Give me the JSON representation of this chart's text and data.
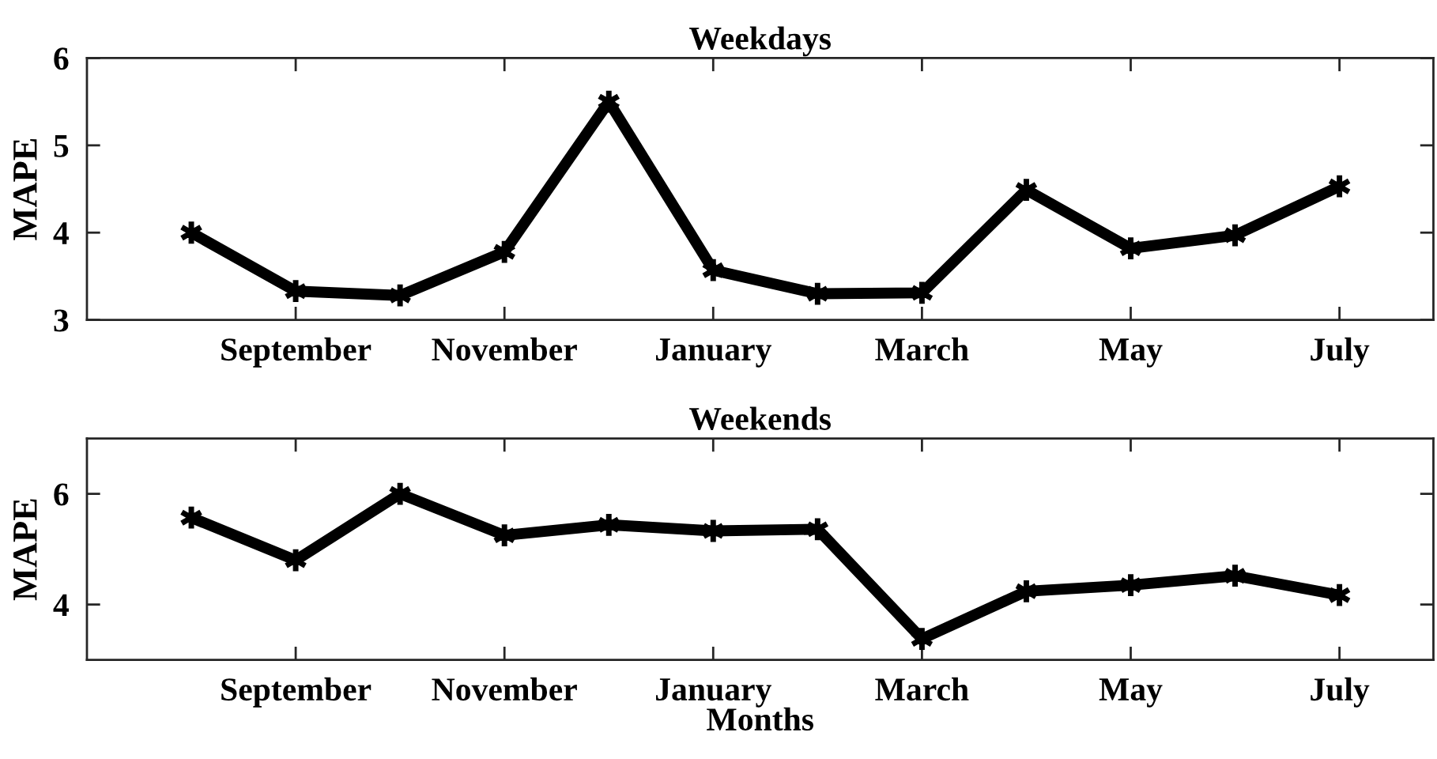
{
  "chart_data": [
    {
      "type": "line",
      "title": "Weekdays",
      "ylabel": "MAPE",
      "categories": [
        null,
        "September",
        null,
        "November",
        null,
        "January",
        null,
        "March",
        null,
        "May",
        null,
        "July"
      ],
      "values": [
        4.0,
        3.33,
        3.28,
        3.78,
        5.5,
        3.57,
        3.3,
        3.31,
        4.49,
        3.82,
        3.97,
        4.53
      ],
      "color": "#000000",
      "marker": "cross",
      "line_style": "solid",
      "ylim": [
        3,
        6
      ],
      "yticks": [
        3,
        4,
        5,
        6
      ]
    },
    {
      "type": "line",
      "title": "Weekends",
      "xlabel": "Months",
      "ylabel": "MAPE",
      "categories": [
        null,
        "September",
        null,
        "November",
        null,
        "January",
        null,
        "March",
        null,
        "May",
        null,
        "July"
      ],
      "values": [
        5.57,
        4.8,
        6.0,
        5.25,
        5.44,
        5.33,
        5.36,
        3.38,
        4.24,
        4.35,
        4.52,
        4.17
      ],
      "color": "#000000",
      "marker": "cross",
      "line_style": "solid",
      "ylim": [
        3,
        7
      ],
      "yticks": [
        4,
        6
      ]
    }
  ]
}
